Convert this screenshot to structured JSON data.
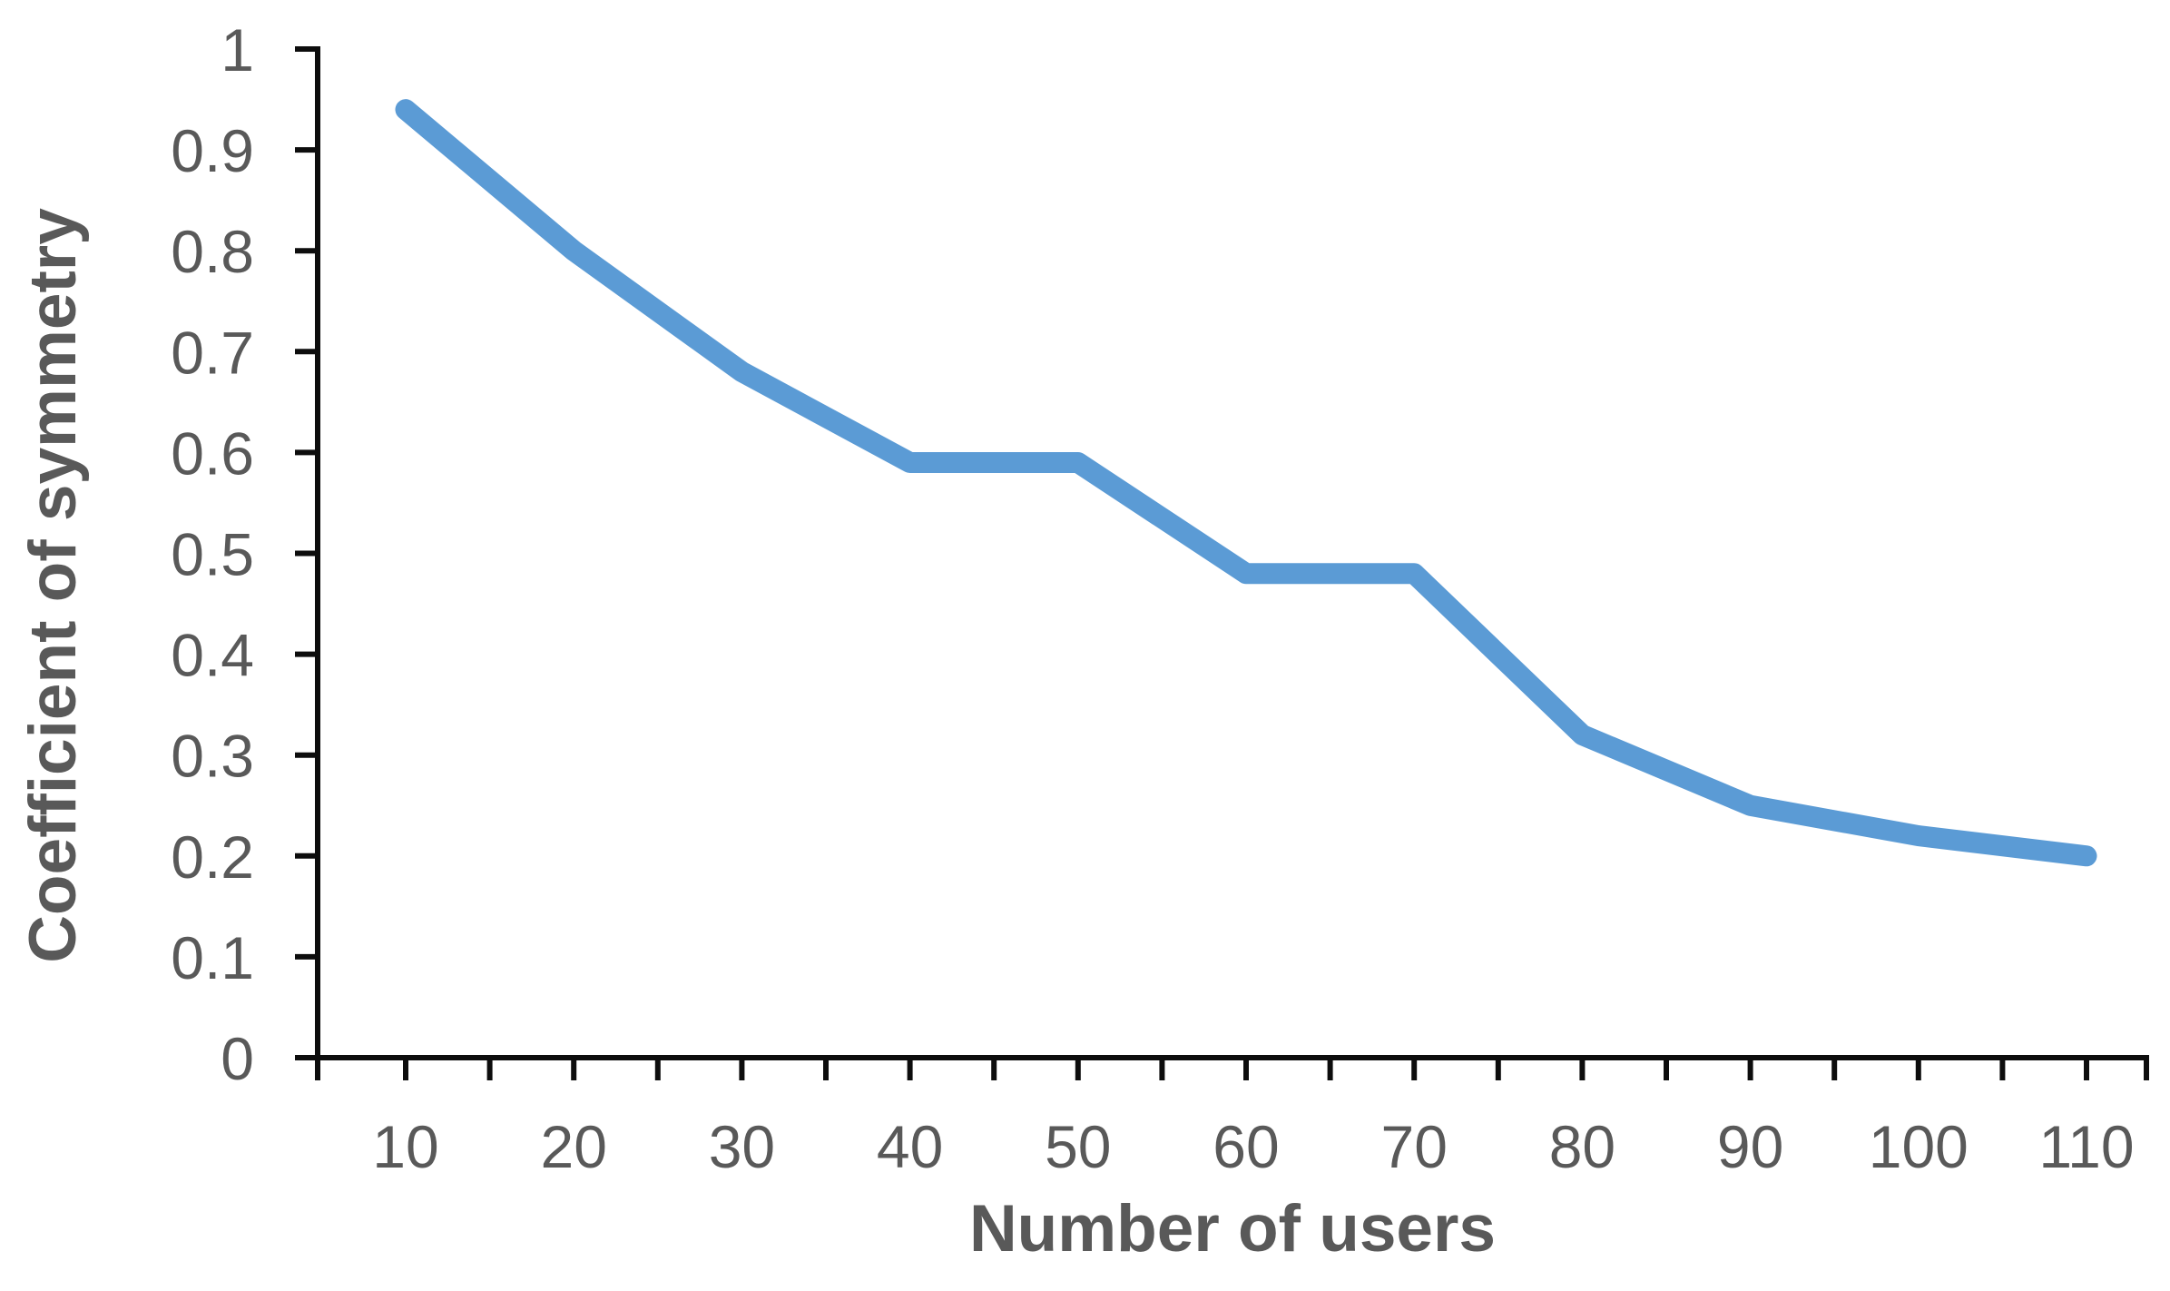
{
  "figure": {
    "background": "#ffffff"
  },
  "chart_data": {
    "type": "line",
    "title": "",
    "xlabel": "Number of users",
    "ylabel": "Coefficient of symmetry",
    "x": [
      10,
      20,
      30,
      40,
      50,
      60,
      70,
      80,
      90,
      100,
      110
    ],
    "values": [
      0.94,
      0.8,
      0.68,
      0.59,
      0.59,
      0.48,
      0.48,
      0.32,
      0.25,
      0.22,
      0.2
    ],
    "xlim": [
      5,
      115
    ],
    "ylim": [
      0,
      1
    ],
    "yticks": [
      0,
      0.1,
      0.2,
      0.3,
      0.4,
      0.5,
      0.6,
      0.7,
      0.8,
      0.9,
      1
    ],
    "ytick_labels": [
      "0",
      "0.1",
      "0.2",
      "0.3",
      "0.4",
      "0.5",
      "0.6",
      "0.7",
      "0.8",
      "0.9",
      "1"
    ],
    "xtick_labels": [
      "10",
      "20",
      "30",
      "40",
      "50",
      "60",
      "70",
      "80",
      "90",
      "100",
      "110"
    ],
    "xtick_minor_step": 5,
    "grid": "off",
    "legend": "none",
    "colors": {
      "line": "#5B9BD5",
      "axis": "#0d0d0d",
      "tick_label": "#595959",
      "axis_title": "#595959"
    }
  }
}
